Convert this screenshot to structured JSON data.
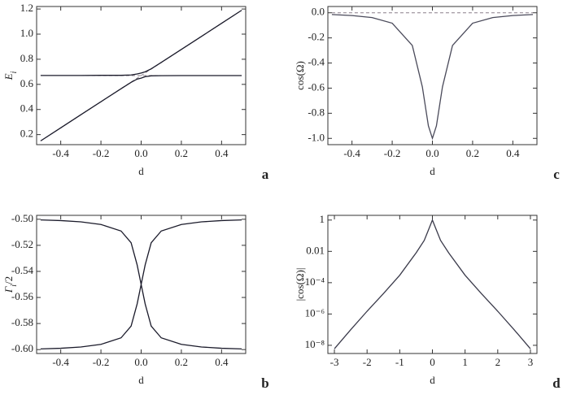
{
  "chart_data": [
    {
      "type": "line",
      "panel": "a",
      "xlabel": "d",
      "ylabel": [
        {
          "text": "E"
        },
        {
          "text": "i",
          "sub": true
        }
      ],
      "xlim": [
        -0.52,
        0.52
      ],
      "ylim": [
        0.12,
        1.22
      ],
      "xticks": [
        -0.4,
        -0.2,
        {
          "value": 0,
          "label": "0.0"
        },
        0.2,
        0.4
      ],
      "yticks": [
        0.2,
        0.4,
        0.6,
        0.8,
        {
          "value": 1,
          "label": "1.0"
        },
        1.2
      ],
      "x": [
        -0.5,
        -0.4,
        -0.3,
        -0.2,
        -0.1,
        -0.05,
        -0.02,
        0,
        0.02,
        0.05,
        0.1,
        0.2,
        0.3,
        0.4,
        0.5
      ],
      "series": [
        {
          "color": "#8a7f8a",
          "dash": true,
          "values": [
            0.67,
            0.67,
            0.67,
            0.67,
            0.67,
            0.67,
            0.67,
            0.67,
            0.67,
            0.67,
            0.67,
            0.67,
            0.67,
            0.67,
            0.67
          ]
        },
        {
          "color": "#8a7f8a",
          "dash": true,
          "values": [
            0.15,
            0.254,
            0.358,
            0.462,
            0.566,
            0.618,
            0.649,
            0.67,
            0.691,
            0.722,
            0.774,
            0.878,
            0.982,
            1.086,
            1.19
          ]
        },
        {
          "color": "#1a1a2a",
          "values": [
            0.671,
            0.671,
            0.671,
            0.672,
            0.672,
            0.675,
            0.683,
            0.69,
            0.7,
            0.724,
            0.775,
            0.878,
            0.982,
            1.086,
            1.19
          ]
        },
        {
          "color": "#1a1a2a",
          "values": [
            0.15,
            0.254,
            0.358,
            0.462,
            0.565,
            0.616,
            0.642,
            0.65,
            0.661,
            0.668,
            0.669,
            0.67,
            0.67,
            0.67,
            0.67
          ]
        }
      ]
    },
    {
      "type": "line",
      "panel": "c",
      "xlabel": "d",
      "ylabel": [
        {
          "text": "cos(Ω)"
        }
      ],
      "xlim": [
        -0.52,
        0.52
      ],
      "ylim": [
        -1.05,
        0.05
      ],
      "xticks": [
        -0.4,
        -0.2,
        {
          "value": 0,
          "label": "0.0"
        },
        0.2,
        0.4
      ],
      "yticks": [
        {
          "value": -1,
          "label": "-1.0"
        },
        -0.8,
        -0.6,
        -0.4,
        -0.2,
        {
          "value": 0,
          "label": "0.0"
        }
      ],
      "x": [
        -0.5,
        -0.4,
        -0.3,
        -0.2,
        -0.1,
        -0.05,
        -0.02,
        0,
        0.02,
        0.05,
        0.1,
        0.2,
        0.3,
        0.4,
        0.5
      ],
      "series": [
        {
          "color": "#8a7f8a",
          "dash": true,
          "values": [
            0,
            0,
            0,
            0,
            0,
            0,
            0,
            0,
            0,
            0,
            0,
            0,
            0,
            0,
            0
          ]
        },
        {
          "color": "#4a4a5a",
          "values": [
            -0.014,
            -0.022,
            -0.038,
            -0.083,
            -0.26,
            -0.59,
            -0.9,
            -1,
            -0.9,
            -0.59,
            -0.26,
            -0.083,
            -0.038,
            -0.022,
            -0.014
          ]
        }
      ]
    },
    {
      "type": "line",
      "panel": "b",
      "xlabel": "d",
      "ylabel": [
        {
          "text": "Γ"
        },
        {
          "text": "i",
          "sub": true
        },
        {
          "text": "/2"
        }
      ],
      "xlim": [
        -0.52,
        0.52
      ],
      "ylim": [
        -0.603,
        -0.497
      ],
      "xticks": [
        -0.4,
        -0.2,
        {
          "value": 0,
          "label": "0.0"
        },
        0.2,
        0.4
      ],
      "yticks": [
        {
          "value": -0.6,
          "label": "-0.60"
        },
        -0.58,
        -0.56,
        -0.54,
        -0.52,
        {
          "value": -0.5,
          "label": "-0.50"
        }
      ],
      "x": [
        -0.5,
        -0.4,
        -0.3,
        -0.2,
        -0.1,
        -0.05,
        -0.02,
        0,
        0.02,
        0.05,
        0.1,
        0.2,
        0.3,
        0.4,
        0.5
      ],
      "series": [
        {
          "color": "#1a1a2a",
          "values": [
            -0.5005,
            -0.501,
            -0.502,
            -0.504,
            -0.509,
            -0.518,
            -0.535,
            -0.55,
            -0.535,
            -0.518,
            -0.509,
            -0.504,
            -0.502,
            -0.501,
            -0.5005
          ]
        },
        {
          "color": "#1a1a2a",
          "values": [
            -0.5995,
            -0.599,
            -0.598,
            -0.596,
            -0.591,
            -0.582,
            -0.565,
            -0.55,
            -0.565,
            -0.582,
            -0.591,
            -0.596,
            -0.598,
            -0.599,
            -0.5995
          ]
        }
      ]
    },
    {
      "type": "line",
      "panel": "d",
      "xlabel": "d",
      "ylabel": [
        {
          "text": "|cos(Ω)|"
        }
      ],
      "log_y": true,
      "xlim": [
        -3.2,
        3.2
      ],
      "ylim": [
        3e-09,
        2
      ],
      "xticks": [
        -3,
        -2,
        -1,
        0,
        1,
        2,
        3
      ],
      "yticks": [
        {
          "value": 1e-08,
          "label": "10⁻⁸"
        },
        {
          "value": 1e-06,
          "label": "10⁻⁶"
        },
        {
          "value": 0.0001,
          "label": "10⁻⁴"
        },
        0.01,
        1
      ],
      "x": [
        -3,
        -2.5,
        -2,
        -1.5,
        -1,
        -0.5,
        -0.25,
        -0.1,
        0,
        0.1,
        0.25,
        0.5,
        1,
        1.5,
        2,
        2.5,
        3
      ],
      "series": [
        {
          "color": "#3a3a4a",
          "values": [
            6e-09,
            1e-07,
            1.5e-06,
            2e-05,
            0.0003,
            0.008,
            0.05,
            0.3,
            1,
            0.3,
            0.05,
            0.008,
            0.0003,
            2e-05,
            1.5e-06,
            1e-07,
            6e-09
          ]
        }
      ]
    }
  ]
}
